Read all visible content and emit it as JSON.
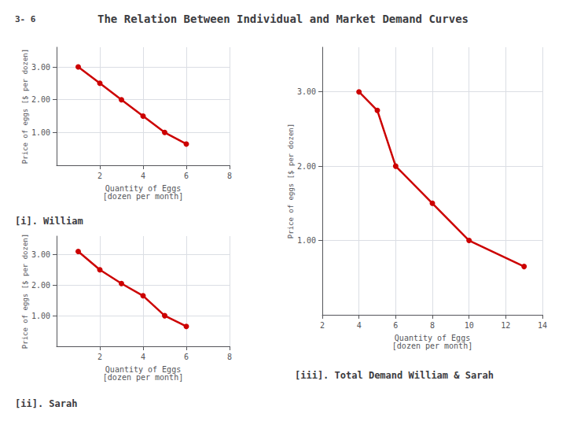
{
  "title": "The Relation Between Individual and Market Demand Curves",
  "annotations": [
    "3- 6"
  ],
  "chart_data": [
    {
      "type": "line",
      "title": "[i]. William",
      "xlabel": "Quantity of Eggs\n[dozen per month]",
      "ylabel": "Price of eggs [$ per dozen]",
      "x": [
        1,
        2,
        3,
        4,
        5,
        6
      ],
      "values": [
        3.0,
        2.5,
        2.0,
        1.5,
        1.0,
        0.65
      ],
      "xlim": [
        0,
        8
      ],
      "ylim": [
        0,
        3.6
      ],
      "xticks": [
        2,
        4,
        6,
        8
      ],
      "yticks": [
        {
          "value": 1,
          "label": "1.00"
        },
        {
          "value": 2,
          "label": "2.00"
        },
        {
          "value": 3,
          "label": "3.00"
        }
      ],
      "color": "#cc0000",
      "marker": "circle",
      "grid": true
    },
    {
      "type": "line",
      "title": "[ii]. Sarah",
      "xlabel": "Quantity of Eggs\n[dozen per month]",
      "ylabel": "Price of eggs [$ per dozen]",
      "x": [
        1,
        2,
        3,
        4,
        5,
        6
      ],
      "values": [
        3.1,
        2.5,
        2.05,
        1.65,
        1.0,
        0.65
      ],
      "xlim": [
        0,
        8
      ],
      "ylim": [
        0,
        3.6
      ],
      "xticks": [
        2,
        4,
        6,
        8
      ],
      "yticks": [
        {
          "value": 1,
          "label": "1.00"
        },
        {
          "value": 2,
          "label": "2.00"
        },
        {
          "value": 3,
          "label": "3.00"
        }
      ],
      "color": "#cc0000",
      "marker": "circle",
      "grid": true
    },
    {
      "type": "line",
      "title": "[iii]. Total Demand William & Sarah",
      "xlabel": "Quantity of Eggs\n[dozen per month]",
      "ylabel": "Price of eggs [$ per dozen]",
      "x": [
        4,
        5,
        6,
        8,
        10,
        13
      ],
      "values": [
        3.0,
        2.75,
        2.0,
        1.5,
        1.0,
        0.65
      ],
      "xlim": [
        2,
        14
      ],
      "ylim": [
        0,
        3.6
      ],
      "xticks": [
        2,
        4,
        6,
        8,
        10,
        12,
        14
      ],
      "yticks": [
        {
          "value": 1,
          "label": "1.00"
        },
        {
          "value": 2,
          "label": "2.00"
        },
        {
          "value": 3,
          "label": "3.00"
        }
      ],
      "color": "#cc0000",
      "marker": "circle",
      "grid": true
    }
  ]
}
